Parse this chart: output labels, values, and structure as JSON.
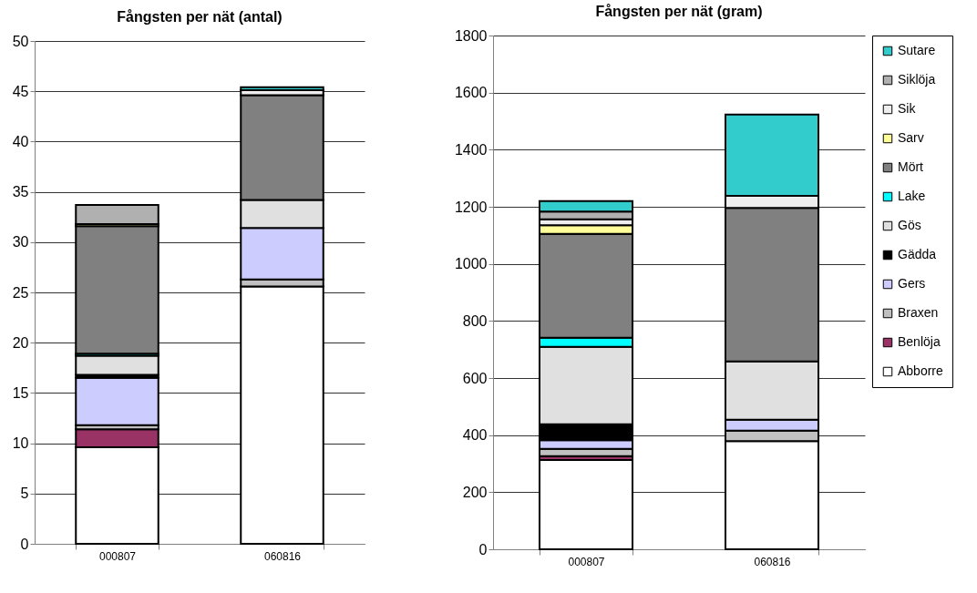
{
  "chart_data": [
    {
      "type": "bar",
      "title": "Fångsten per nät (antal)",
      "categories": [
        "000807",
        "060816"
      ],
      "stacked": true,
      "legend": false,
      "grid": "y",
      "ylim": [
        0,
        50
      ],
      "yticks": [
        0,
        5,
        10,
        15,
        20,
        25,
        30,
        35,
        40,
        45,
        50
      ],
      "series": [
        {
          "color": "#ffffff",
          "values": [
            9.6,
            25.6
          ]
        },
        {
          "color": "#993366",
          "values": [
            1.8,
            null
          ]
        },
        {
          "color": "#c0c0c0",
          "values": [
            0.4,
            0.7
          ]
        },
        {
          "color": "#ccccff",
          "values": [
            4.7,
            5.1
          ]
        },
        {
          "color": "#000000",
          "values": [
            0.3,
            null
          ]
        },
        {
          "color": "#e0e0e0",
          "values": [
            1.9,
            2.8
          ]
        },
        {
          "color": "#00ffff",
          "values": [
            0.2,
            null
          ]
        },
        {
          "color": "#808080",
          "values": [
            12.7,
            10.4
          ]
        },
        {
          "color": "#ffff99",
          "values": [
            0.2,
            null
          ]
        },
        {
          "color": "#eeeeee",
          "values": [
            null,
            0.5
          ]
        },
        {
          "color": "#b0b0b0",
          "values": [
            1.9,
            null
          ]
        },
        {
          "color": "#33cccc",
          "values": [
            null,
            0.3
          ]
        }
      ]
    },
    {
      "type": "bar",
      "title": "Fångsten per nät (gram)",
      "categories": [
        "000807",
        "060816"
      ],
      "stacked": true,
      "legend": "right",
      "grid": "y",
      "ylim": [
        0,
        1800
      ],
      "yticks": [
        0,
        200,
        400,
        600,
        800,
        1000,
        1200,
        1400,
        1600,
        1800
      ],
      "series": [
        {
          "name": "Abborre",
          "color": "#ffffff",
          "values": [
            313,
            379
          ]
        },
        {
          "name": "Benlöja",
          "color": "#993366",
          "values": [
            13,
            null
          ]
        },
        {
          "name": "Braxen",
          "color": "#c0c0c0",
          "values": [
            26,
            37
          ]
        },
        {
          "name": "Gers",
          "color": "#ccccff",
          "values": [
            30,
            38
          ]
        },
        {
          "name": "Gädda",
          "color": "#000000",
          "values": [
            56,
            null
          ]
        },
        {
          "name": "Gös",
          "color": "#e0e0e0",
          "values": [
            271,
            204
          ]
        },
        {
          "name": "Lake",
          "color": "#00ffff",
          "values": [
            32,
            null
          ]
        },
        {
          "name": "Mört",
          "color": "#808080",
          "values": [
            364,
            538
          ]
        },
        {
          "name": "Sarv",
          "color": "#ffff99",
          "values": [
            30,
            null
          ]
        },
        {
          "name": "Sik",
          "color": "#eeeeee",
          "values": [
            21,
            42
          ]
        },
        {
          "name": "Siklöja",
          "color": "#b0b0b0",
          "values": [
            27,
            null
          ]
        },
        {
          "name": "Sutare",
          "color": "#33cccc",
          "values": [
            37,
            285
          ]
        }
      ]
    }
  ]
}
